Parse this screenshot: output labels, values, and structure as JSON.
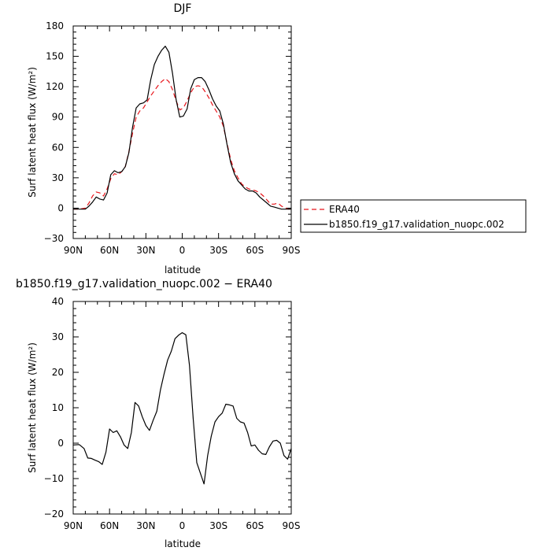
{
  "chart_data": [
    {
      "type": "line",
      "title": "DJF",
      "xlabel": "latitude",
      "ylabel": "Surf latent heat flux (W/m²)",
      "xlim": [
        90,
        -90
      ],
      "ylim": [
        -30,
        180
      ],
      "x_ticks": [
        90,
        60,
        30,
        0,
        -30,
        -60,
        -90
      ],
      "x_tick_labels": [
        "90N",
        "60N",
        "30N",
        "0",
        "30S",
        "60S",
        "90S"
      ],
      "y_ticks": [
        -30,
        0,
        30,
        60,
        90,
        120,
        150,
        180
      ],
      "y_tick_labels": [
        "−30",
        "0",
        "30",
        "60",
        "90",
        "120",
        "150",
        "180"
      ],
      "legend_position": "right",
      "series": [
        {
          "name": "ERA40",
          "color": "#e8141a",
          "dash": "dashed",
          "x": [
            90,
            85,
            80,
            77,
            74,
            71,
            68,
            65,
            62,
            59,
            56,
            53,
            50,
            47,
            44,
            41,
            38,
            35,
            32,
            29,
            26,
            23,
            20,
            17,
            14,
            11,
            8,
            5,
            2,
            -1,
            -4,
            -7,
            -10,
            -13,
            -16,
            -19,
            -22,
            -25,
            -28,
            -31,
            -34,
            -37,
            -40,
            -43,
            -46,
            -49,
            -52,
            -55,
            -58,
            -61,
            -64,
            -67,
            -70,
            -73,
            -76,
            -79,
            -82,
            -85,
            -88,
            -90
          ],
          "y": [
            -1,
            -1,
            0,
            5,
            12,
            16,
            15,
            12,
            19,
            29,
            34,
            33,
            36,
            41,
            56,
            74,
            90,
            96,
            99,
            105,
            111,
            116,
            121,
            125,
            128,
            125,
            117,
            106,
            97,
            99,
            106,
            114,
            120,
            121,
            120,
            115,
            109,
            102,
            96,
            90,
            81,
            64,
            48,
            37,
            30,
            24,
            21,
            19,
            18,
            17,
            15,
            12,
            8,
            4,
            4,
            5,
            2,
            0,
            -1,
            -1
          ]
        },
        {
          "name": "b1850.f19_g17.validation_nuopc.002",
          "color": "#000000",
          "dash": "solid",
          "x": [
            90,
            85,
            80,
            77,
            74,
            71,
            68,
            65,
            62,
            59,
            56,
            53,
            50,
            47,
            44,
            41,
            38,
            35,
            32,
            29,
            26,
            23,
            20,
            17,
            14,
            11,
            8,
            5,
            2,
            -1,
            -4,
            -7,
            -10,
            -13,
            -16,
            -19,
            -22,
            -25,
            -28,
            -31,
            -34,
            -37,
            -40,
            -43,
            -46,
            -49,
            -52,
            -55,
            -58,
            -61,
            -64,
            -67,
            -70,
            -73,
            -76,
            -79,
            -82,
            -85,
            -88,
            -90
          ],
          "y": [
            -1,
            -1,
            -1,
            2,
            6,
            11,
            9,
            8,
            15,
            33,
            37,
            35,
            36,
            41,
            55,
            80,
            99,
            103,
            104,
            107,
            127,
            142,
            150,
            156,
            160,
            154,
            133,
            107,
            90,
            91,
            98,
            118,
            127,
            129,
            129,
            125,
            117,
            108,
            101,
            96,
            83,
            63,
            45,
            34,
            27,
            23,
            19,
            17,
            17,
            15,
            11,
            8,
            5,
            2,
            1,
            0,
            -1,
            -1,
            -1,
            -1
          ]
        }
      ]
    },
    {
      "type": "line",
      "title": "b1850.f19_g17.validation_nuopc.002 − ERA40",
      "xlabel": "latitude",
      "ylabel": "Surf latent heat flux (W/m²)",
      "xlim": [
        90,
        -90
      ],
      "ylim": [
        -20,
        40
      ],
      "x_ticks": [
        90,
        60,
        30,
        0,
        -30,
        -60,
        -90
      ],
      "x_tick_labels": [
        "90N",
        "60N",
        "30N",
        "0",
        "30S",
        "60S",
        "90S"
      ],
      "y_ticks": [
        -20,
        -10,
        0,
        10,
        20,
        30,
        40
      ],
      "y_tick_labels": [
        "−20",
        "−10",
        "0",
        "10",
        "20",
        "30",
        "40"
      ],
      "series": [
        {
          "color": "#000000",
          "dash": "solid",
          "x": [
            90,
            85,
            81,
            78,
            75,
            72,
            69,
            66,
            63,
            60,
            57,
            54,
            51,
            48,
            45,
            42,
            39,
            36,
            33,
            30,
            27,
            24,
            21,
            18,
            15,
            12,
            9,
            6,
            3,
            0,
            -3,
            -6,
            -9,
            -12,
            -15,
            -18,
            -21,
            -24,
            -27,
            -30,
            -33,
            -36,
            -39,
            -42,
            -45,
            -48,
            -51,
            -54,
            -57,
            -60,
            -63,
            -66,
            -69,
            -72,
            -75,
            -78,
            -81,
            -84,
            -87,
            -90
          ],
          "y": [
            -0.5,
            -0.4,
            -1.5,
            -4.2,
            -4.3,
            -4.8,
            -5.2,
            -6.0,
            -2.5,
            4.0,
            3.0,
            3.5,
            1.8,
            -0.5,
            -1.5,
            3.0,
            11.5,
            10.5,
            7.5,
            5.0,
            3.6,
            6.5,
            9.0,
            15.0,
            19.5,
            23.5,
            26.0,
            29.5,
            30.5,
            31.2,
            30.6,
            22.0,
            7.0,
            -5.5,
            -8.5,
            -11.5,
            -3.5,
            2.0,
            6.0,
            7.5,
            8.5,
            11.0,
            10.8,
            10.5,
            7.0,
            6.0,
            5.7,
            3.0,
            -0.8,
            -0.5,
            -2.0,
            -3.0,
            -3.2,
            -1.0,
            0.6,
            0.8,
            0.0,
            -3.5,
            -4.5,
            -1.5
          ]
        }
      ]
    }
  ]
}
